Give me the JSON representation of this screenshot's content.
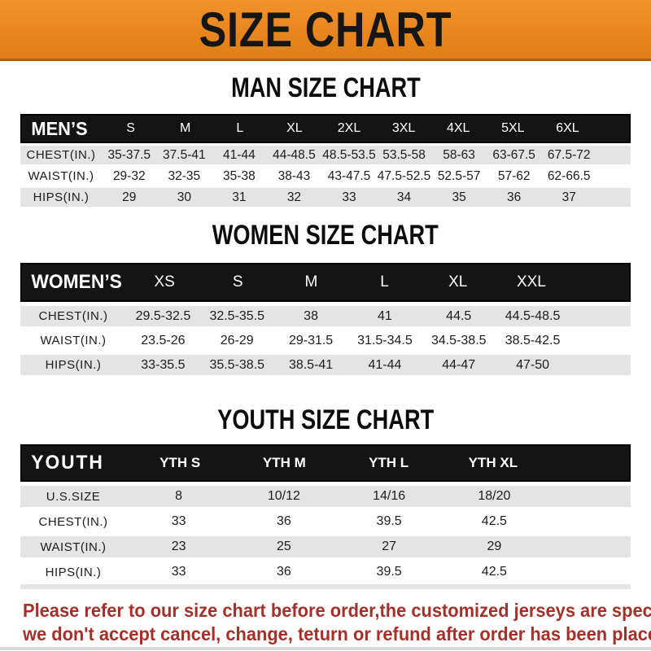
{
  "banner": {
    "title": "SIZE CHART"
  },
  "sections": [
    {
      "title": "MAN SIZE CHART",
      "table": {
        "label": "MEN’S",
        "columns": [
          "S",
          "M",
          "L",
          "XL",
          "2XL",
          "3XL",
          "4XL",
          "5XL",
          "6XL"
        ],
        "rows": [
          {
            "label": "CHEST(IN.)",
            "values": [
              "35-37.5",
              "37.5-41",
              "41-44",
              "44-48.5",
              "48.5-53.5",
              "53.5-58",
              "58-63",
              "63-67.5",
              "67.5-72"
            ]
          },
          {
            "label": "WAIST(IN.)",
            "values": [
              "29-32",
              "32-35",
              "35-38",
              "38-43",
              "43-47.5",
              "47.5-52.5",
              "52.5-57",
              "57-62",
              "62-66.5"
            ]
          },
          {
            "label": "HIPS(IN.)",
            "values": [
              "29",
              "30",
              "31",
              "32",
              "33",
              "34",
              "35",
              "36",
              "37"
            ]
          }
        ]
      }
    },
    {
      "title": "WOMEN SIZE CHART",
      "table": {
        "label": "WOMEN’S",
        "columns": [
          "XS",
          "S",
          "M",
          "L",
          "XL",
          "XXL"
        ],
        "rows": [
          {
            "label": "CHEST(IN.)",
            "values": [
              "29.5-32.5",
              "32.5-35.5",
              "38",
              "41",
              "44.5",
              "44.5-48.5"
            ]
          },
          {
            "label": "WAIST(IN.)",
            "values": [
              "23.5-26",
              "26-29",
              "29-31.5",
              "31.5-34.5",
              "34.5-38.5",
              "38.5-42.5"
            ]
          },
          {
            "label": "HIPS(IN.)",
            "values": [
              "33-35.5",
              "35.5-38.5",
              "38.5-41",
              "41-44",
              "44-47",
              "47-50"
            ]
          }
        ]
      }
    },
    {
      "title": "YOUTH SIZE CHART",
      "table": {
        "label": "YOUTH",
        "columns": [
          "YTH S",
          "YTH M",
          "YTH L",
          "YTH XL"
        ],
        "rows": [
          {
            "label": "U.S.SIZE",
            "values": [
              "8",
              "10/12",
              "14/16",
              "18/20"
            ]
          },
          {
            "label": "CHEST(IN.)",
            "values": [
              "33",
              "36",
              "39.5",
              "42.5"
            ]
          },
          {
            "label": "WAIST(IN.)",
            "values": [
              "23",
              "25",
              "27",
              "29"
            ]
          },
          {
            "label": "HIPS(IN.)",
            "values": [
              "33",
              "36",
              "39.5",
              "42.5"
            ]
          }
        ]
      }
    }
  ],
  "footer": {
    "line1": "Please refer to our size chart before order,the customized jerseys are special products,",
    "line2": "we don't accept cancel, change, teturn or refund after order has been placed!"
  },
  "colors": {
    "banner_orange": "#E8861E",
    "bar_black": "#141414",
    "row_gray": "#E4E4E4",
    "footer_red": "#A5302A"
  }
}
